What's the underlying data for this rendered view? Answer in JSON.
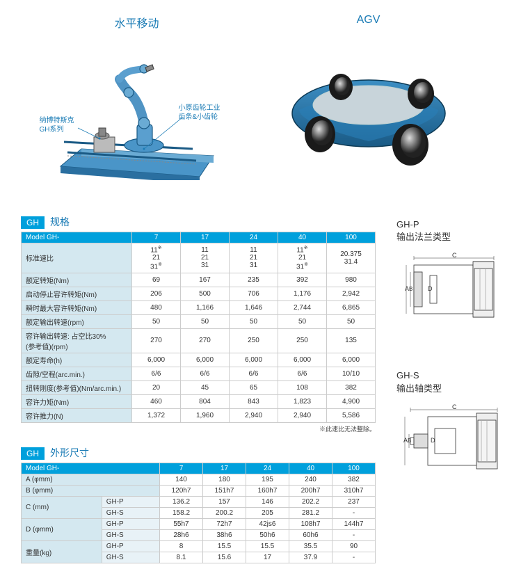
{
  "top": {
    "left_title": "水平移动",
    "right_title": "AGV",
    "callout1_l1": "纳博特斯克",
    "callout1_l2": "GH系列",
    "callout2_l1": "小原齿轮工业",
    "callout2_l2": "齿条&小齿轮"
  },
  "colors": {
    "accent": "#00a0dc",
    "accent_dark": "#1a7bb5",
    "header_bg": "#d4e8f0",
    "machine_body": "#2a7fb8",
    "machine_light": "#6aabd4",
    "machine_dark": "#1a5a85",
    "wheel": "#333333"
  },
  "spec": {
    "tag": "GH",
    "title": "规格",
    "model_label": "Model GH-",
    "cols": [
      "7",
      "17",
      "24",
      "40",
      "100"
    ],
    "rows": [
      {
        "label": "标准速比",
        "vals": [
          "11※\n21\n31※",
          "11\n21\n31",
          "11\n21\n31",
          "11※\n21\n31※",
          "20.375\n31.4"
        ]
      },
      {
        "label": "额定转矩(Nm)",
        "vals": [
          "69",
          "167",
          "235",
          "392",
          "980"
        ]
      },
      {
        "label": "启动停止容许转矩(Nm)",
        "vals": [
          "206",
          "500",
          "706",
          "1,176",
          "2,942"
        ]
      },
      {
        "label": "瞬时最大容许转矩(Nm)",
        "vals": [
          "480",
          "1,166",
          "1,646",
          "2,744",
          "6,865"
        ]
      },
      {
        "label": "额定输出转速(rpm)",
        "vals": [
          "50",
          "50",
          "50",
          "50",
          "50"
        ]
      },
      {
        "label": "容许输出转速: 占空比30%\n(参考值)(rpm)",
        "vals": [
          "270",
          "270",
          "250",
          "250",
          "135"
        ]
      },
      {
        "label": "额定寿命(h)",
        "vals": [
          "6,000",
          "6,000",
          "6,000",
          "6,000",
          "6,000"
        ]
      },
      {
        "label": "齿隙/空程(arc.min.)",
        "vals": [
          "6/6",
          "6/6",
          "6/6",
          "6/6",
          "10/10"
        ]
      },
      {
        "label": "扭转刚度(参考值)(Nm/arc.min.)",
        "vals": [
          "20",
          "45",
          "65",
          "108",
          "382"
        ]
      },
      {
        "label": "容许力矩(Nm)",
        "vals": [
          "460",
          "804",
          "843",
          "1,823",
          "4,900"
        ]
      },
      {
        "label": "容许推力(N)",
        "vals": [
          "1,372",
          "1,960",
          "2,940",
          "2,940",
          "5,586"
        ]
      }
    ],
    "note": "※此速比无法整除。"
  },
  "dim": {
    "tag": "GH",
    "title": "外形尺寸",
    "model_label": "Model GH-",
    "cols": [
      "7",
      "17",
      "24",
      "40",
      "100"
    ],
    "rows": [
      {
        "label": "A (φmm)",
        "span": 2,
        "vals": [
          "140",
          "180",
          "195",
          "240",
          "382"
        ]
      },
      {
        "label": "B (φmm)",
        "span": 2,
        "vals": [
          "120h7",
          "151h7",
          "160h7",
          "200h7",
          "310h7"
        ]
      },
      {
        "label": "C (mm)",
        "sub": "GH-P",
        "vals": [
          "136.2",
          "157",
          "146",
          "202.2",
          "237"
        ]
      },
      {
        "sub": "GH-S",
        "vals": [
          "158.2",
          "200.2",
          "205",
          "281.2",
          "-"
        ]
      },
      {
        "label": "D (φmm)",
        "sub": "GH-P",
        "vals": [
          "55h7",
          "72h7",
          "42js6",
          "108h7",
          "144h7"
        ]
      },
      {
        "sub": "GH-S",
        "vals": [
          "28h6",
          "38h6",
          "50h6",
          "60h6",
          "-"
        ]
      },
      {
        "label": "重量(kg)",
        "sub": "GH-P",
        "vals": [
          "8",
          "15.5",
          "15.5",
          "35.5",
          "90"
        ]
      },
      {
        "sub": "GH-S",
        "vals": [
          "8.1",
          "15.6",
          "17",
          "37.9",
          "-"
        ]
      }
    ]
  },
  "diag": {
    "p_title": "GH-P",
    "p_sub": "输出法兰类型",
    "s_title": "GH-S",
    "s_sub": "输出轴类型",
    "labels": {
      "A": "A",
      "B": "B",
      "C": "C",
      "D": "D"
    }
  }
}
